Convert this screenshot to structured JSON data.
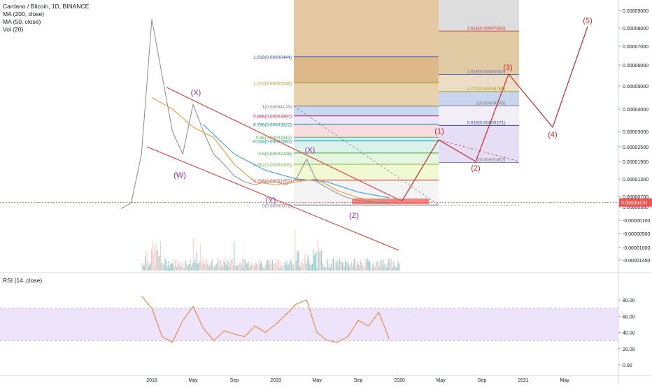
{
  "header": {
    "title": "Cardano / Bitcoin, 1D, BINANCE",
    "indicators": [
      "MA (200, close)",
      "MA (50, close)",
      "Vol (20)"
    ],
    "rsi_label": "RSI (14, close)"
  },
  "colors": {
    "price_up": "#26a69a",
    "price_line": "#8a8a8a",
    "ma200": "#4aa3df",
    "ma50": "#f0a040",
    "channel": "#e53935",
    "wave_label": "#9c27b0",
    "projection": "#c62828",
    "rsi_line": "#f0782d",
    "rsi_band": "#ede4fb",
    "current_price_bg": "#ef5350"
  },
  "chart_data": [
    {
      "type": "line",
      "title": "Cardano / Bitcoin, 1D, BINANCE",
      "xlabel": "",
      "ylabel": "",
      "x_ticks": [
        "2018",
        "May",
        "Sep",
        "2019",
        "May",
        "Sep",
        "2020",
        "May",
        "Sep",
        "2021",
        "May"
      ],
      "y_ticks": [
        "0.00009000",
        "0.00008000",
        "0.00007000",
        "0.00006000",
        "0.00005000",
        "0.00004000",
        "0.00003000",
        "0.00002500",
        "0.00001900",
        "0.00001300",
        "0.00000700",
        "0.00000300",
        "-0.00000100",
        "-0.00000500",
        "-0.00001000",
        "-0.00001450"
      ],
      "current_price": "0.00000470",
      "series": [
        {
          "name": "Cardano / Bitcoin",
          "x": [
            "2017-10",
            "2017-11",
            "2017-12",
            "2018-01",
            "2018-02",
            "2018-03",
            "2018-04",
            "2018-05",
            "2018-06",
            "2018-07",
            "2018-08",
            "2018-09",
            "2018-10",
            "2018-11",
            "2018-12",
            "2019-01",
            "2019-02",
            "2019-03",
            "2019-04",
            "2019-05",
            "2019-06",
            "2019-07",
            "2019-08",
            "2019-09",
            "2019-10",
            "2019-11",
            "2019-12"
          ],
          "y": [
            2.5e-06,
            4.5e-06,
            2.2e-05,
            8.5e-05,
            5.5e-05,
            3e-05,
            2.2e-05,
            4.2e-05,
            3e-05,
            2.2e-05,
            1.8e-05,
            1.4e-05,
            1.2e-05,
            1.1e-05,
            1.2e-05,
            1.2e-05,
            1.1e-05,
            1.3e-05,
            2e-05,
            1.2e-05,
            1e-05,
            8e-06,
            6.5e-06,
            5.5e-06,
            5e-06,
            4.8e-06,
            4.7e-06
          ]
        },
        {
          "name": "MA (200, close)",
          "x": [
            "2018-06",
            "2018-09",
            "2018-12",
            "2019-03",
            "2019-06",
            "2019-09",
            "2019-12"
          ],
          "y": [
            3.3e-05,
            2.2e-05,
            1.6e-05,
            1.3e-05,
            1.2e-05,
            8.5e-06,
            6.5e-06
          ]
        },
        {
          "name": "MA (50, close)",
          "x": [
            "2018-01",
            "2018-03",
            "2018-05",
            "2018-07",
            "2018-09",
            "2018-11",
            "2019-01",
            "2019-03",
            "2019-05",
            "2019-07",
            "2019-09",
            "2019-11"
          ],
          "y": [
            4.5e-05,
            4e-05,
            3.2e-05,
            2.8e-05,
            1.8e-05,
            1.2e-05,
            1.1e-05,
            1.2e-05,
            1.3e-05,
            9e-06,
            6.5e-06,
            5.2e-06
          ]
        }
      ],
      "fib_retracement": [
        {
          "label": "1.618(0.00006444)"
        },
        {
          "label": "1.272(0.00005146)"
        },
        {
          "label": "1(0.00004125)"
        },
        {
          "label": "0.886(0.00003697)"
        },
        {
          "label": "0.786(0.00003322)"
        },
        {
          "label": "0.65(0.00002813)"
        },
        {
          "label": "0.618(0.00002691)"
        },
        {
          "label": "0.5(0.00002248)"
        },
        {
          "label": "0.382(0.00001805)"
        },
        {
          "label": "0.236(0.00001257)"
        },
        {
          "label": "0(0.00000372)"
        }
      ],
      "fib_extension": [
        {
          "label": "2.618(0.00007832)"
        },
        {
          "label": "1.618(0.00005552)"
        },
        {
          "label": "1.272(0.00004763)"
        },
        {
          "label": "1(0.00004143)"
        },
        {
          "label": "0.618(0.00003271)"
        },
        {
          "label": "0(0.00001862)"
        }
      ],
      "wave_labels": [
        "(X)",
        "(W)",
        "(X)",
        "(Y)",
        "(Z)"
      ],
      "projection_labels": [
        "(1)",
        "(2)",
        "(3)",
        "(4)",
        "(5)"
      ],
      "volume": {
        "name": "Vol (20)"
      },
      "grid": true,
      "legend": "top-left"
    },
    {
      "type": "line",
      "title": "RSI (14, close)",
      "y_ticks": [
        "80.00",
        "60.00",
        "40.00",
        "20.00",
        "0.00"
      ],
      "ylim": [
        0,
        100
      ],
      "band": [
        30,
        70
      ],
      "series": [
        {
          "name": "RSI (14, close)",
          "x": [
            "2017-12",
            "2018-01",
            "2018-02",
            "2018-03",
            "2018-04",
            "2018-05",
            "2018-06",
            "2018-07",
            "2018-08",
            "2018-09",
            "2018-10",
            "2018-11",
            "2018-12",
            "2019-01",
            "2019-02",
            "2019-03",
            "2019-04",
            "2019-05",
            "2019-06",
            "2019-07",
            "2019-08",
            "2019-09",
            "2019-10",
            "2019-11",
            "2019-12"
          ],
          "y": [
            85,
            70,
            35,
            28,
            55,
            72,
            45,
            30,
            42,
            38,
            35,
            48,
            40,
            50,
            62,
            75,
            80,
            40,
            30,
            28,
            35,
            55,
            48,
            65,
            32
          ]
        }
      ]
    }
  ]
}
